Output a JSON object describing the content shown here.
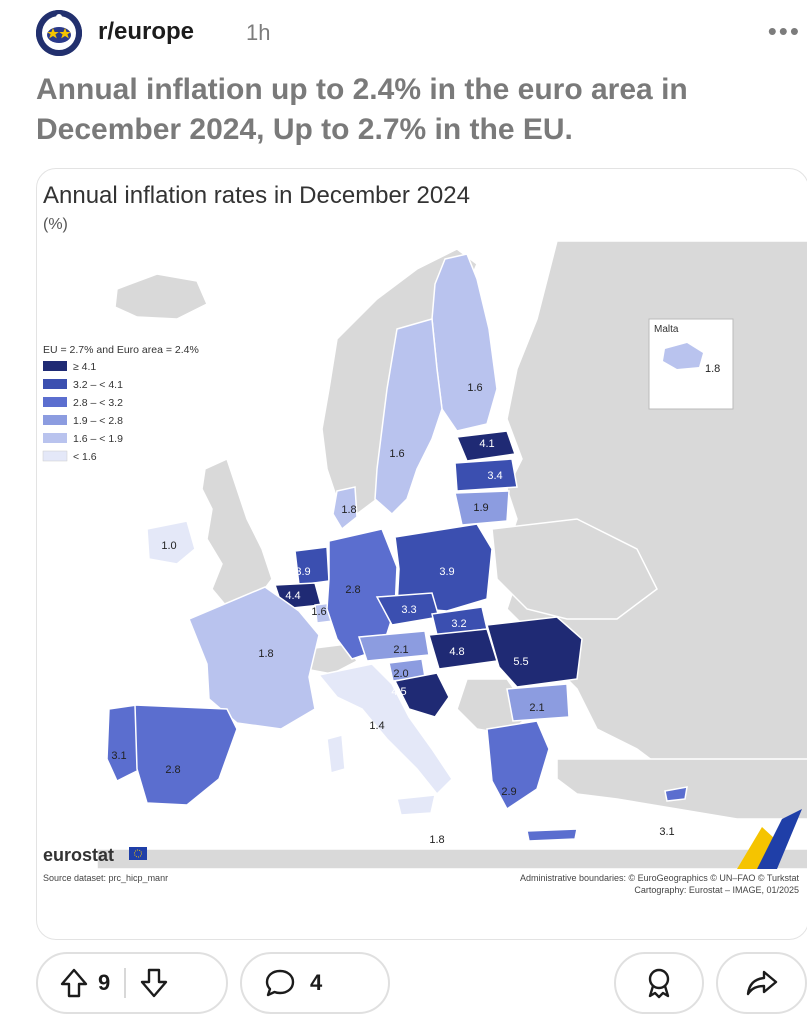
{
  "header": {
    "subreddit": "r/europe",
    "age": "1h",
    "more_label": "•••"
  },
  "post": {
    "title": "Annual inflation up to 2.4% in the euro area in December 2024, Up to 2.7% in the EU."
  },
  "image": {
    "title": "Annual inflation rates in December 2024",
    "unit": "(%)",
    "legend_title": "EU = 2.7% and Euro area = 2.4%",
    "legend": [
      {
        "label": "≥ 4.1",
        "color": "#1f2a74"
      },
      {
        "label": "3.2 – < 4.1",
        "color": "#3b4fb0"
      },
      {
        "label": "2.8 – < 3.2",
        "color": "#5b6ecf"
      },
      {
        "label": "1.9 – < 2.8",
        "color": "#8c9ce0"
      },
      {
        "label": "1.6 – < 1.9",
        "color": "#b9c3ee"
      },
      {
        "label": "< 1.6",
        "color": "#e4e8f8"
      }
    ],
    "inset_title": "Malta",
    "inset_value": "1.8",
    "country_values": {
      "finland": "1.6",
      "sweden": "1.6",
      "estonia": "4.1",
      "latvia": "3.4",
      "lithuania": "1.9",
      "denmark": "1.8",
      "ireland": "1.0",
      "netherlands": "3.9",
      "belgium": "4.4",
      "luxembourg": "1.6",
      "germany": "2.8",
      "poland": "3.9",
      "czechia": "3.3",
      "slovakia": "3.2",
      "austria": "2.1",
      "hungary": "4.8",
      "slovenia": "2.0",
      "croatia": "4.5",
      "romania": "5.5",
      "bulgaria": "2.1",
      "france": "1.8",
      "italy": "1.4",
      "portugal": "3.1",
      "spain": "2.8",
      "greece": "2.9",
      "cyprus": "3.1",
      "malta": "1.8"
    },
    "brand": "eurostat",
    "source": "Source dataset: prc_hicp_manr",
    "credits_line1": "Administrative boundaries: © EuroGeographics © UN–FAO © Turkstat",
    "credits_line2": "Cartography: Eurostat – IMAGE, 01/2025"
  },
  "actions": {
    "upvote_count": "9",
    "comment_count": "4"
  },
  "colors": {
    "accent_dark": "#1f2a74",
    "land_non_eu": "#d9d9d9",
    "sea": "#ffffff"
  }
}
